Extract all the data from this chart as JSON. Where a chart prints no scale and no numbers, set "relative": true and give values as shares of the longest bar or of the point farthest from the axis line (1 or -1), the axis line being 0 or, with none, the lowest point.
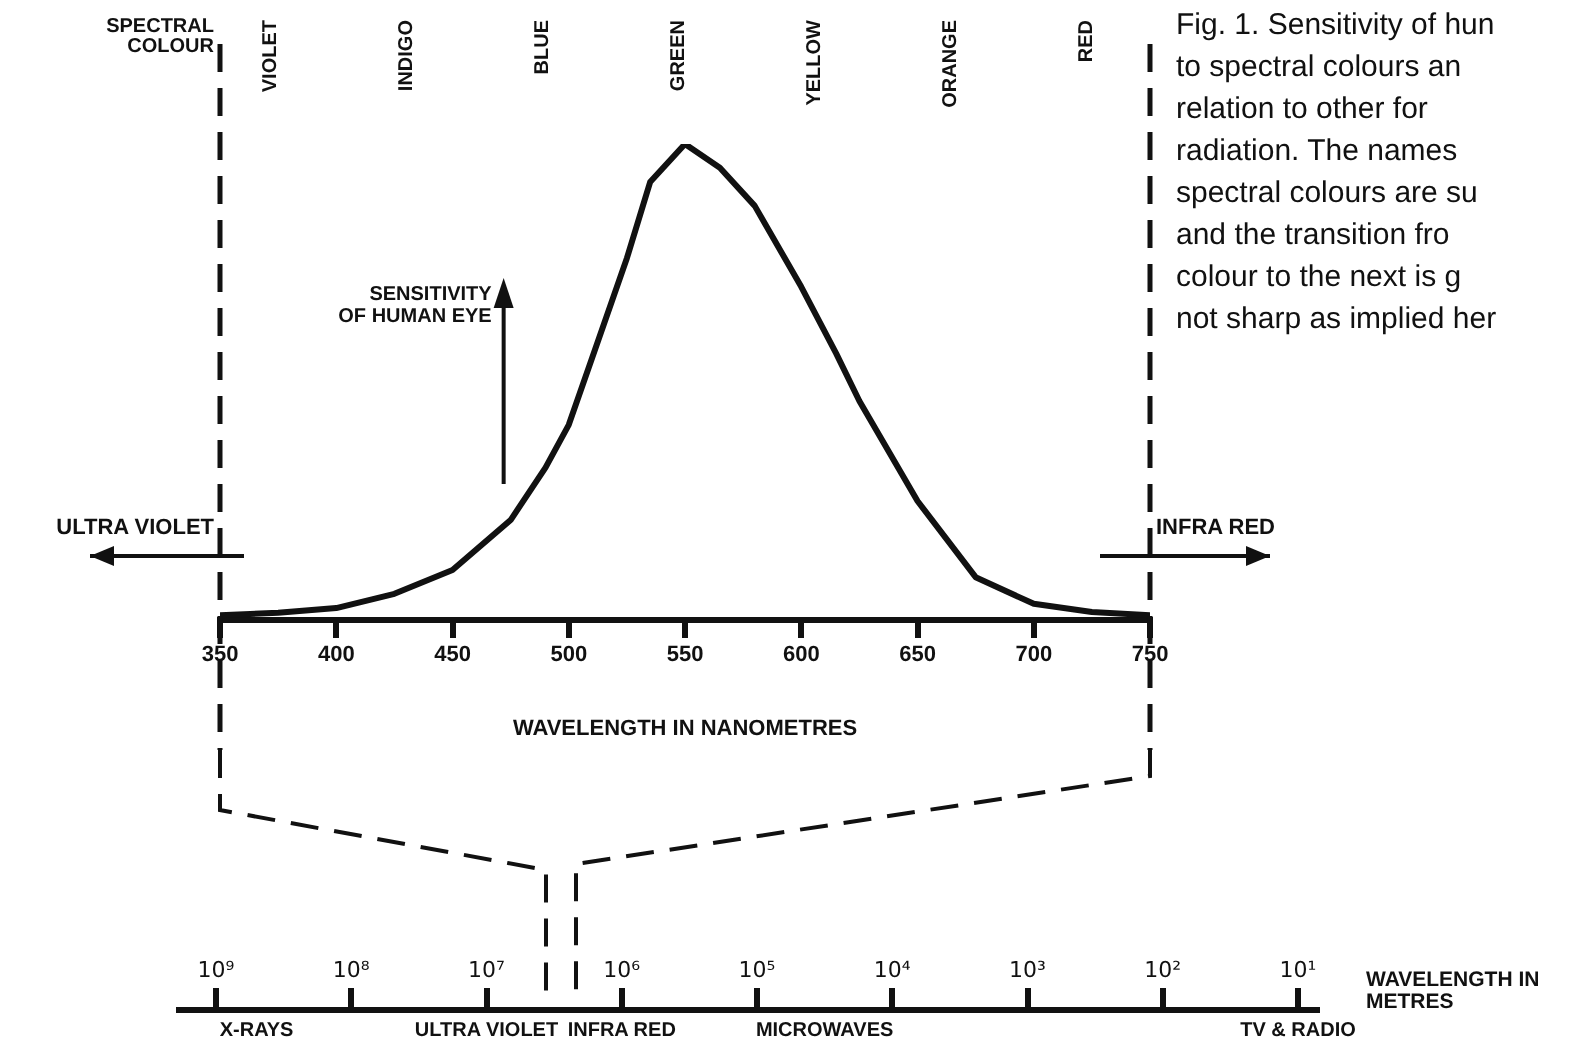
{
  "chart_data": [
    {
      "type": "line",
      "relative": true,
      "xlabel": "WAVELENGTH IN NANOMETRES",
      "ylabel": "SENSITIVITY OF HUMAN EYE",
      "x2label": "SPECTRAL COLOUR",
      "x": [
        350,
        375,
        400,
        425,
        450,
        475,
        490,
        500,
        510,
        525,
        535,
        550,
        565,
        580,
        600,
        615,
        625,
        650,
        675,
        700,
        725,
        750
      ],
      "values": [
        0.01,
        0.015,
        0.025,
        0.055,
        0.105,
        0.21,
        0.32,
        0.41,
        0.55,
        0.76,
        0.92,
        1,
        0.95,
        0.87,
        0.7,
        0.56,
        0.46,
        0.25,
        0.09,
        0.034,
        0.017,
        0.01
      ],
      "color": "#111111",
      "marker": "none",
      "grid": false,
      "legend": false,
      "xlim": [
        350,
        750
      ],
      "xticks": [
        350,
        400,
        450,
        500,
        550,
        600,
        650,
        700,
        750
      ],
      "ref_lines": [
        {
          "axis": "x",
          "value": 350,
          "label": "ULTRA VIOLET",
          "line_style": "dashed"
        },
        {
          "axis": "x",
          "value": 750,
          "label": "INFRA RED",
          "line_style": "dashed"
        }
      ],
      "annotations": [
        "VIOLET",
        "INDIGO",
        "BLUE",
        "GREEN",
        "YELLOW",
        "ORANGE",
        "RED",
        "Fig. 1. Sensitivity of hun\nto spectral colours an\nrelation to other for\nradiation. The names\nspectral colours are su\nand the transition fro\ncolour to the next is g\nnot sharp as implied her"
      ]
    },
    {
      "type": "other",
      "xlabel": "WAVELENGTH IN METRES",
      "categories": [
        "10⁹",
        "10⁸",
        "10⁷",
        "10⁶",
        "10⁵",
        "10⁴",
        "10³",
        "10²",
        "10¹"
      ],
      "annotations": [
        "X-RAYS",
        "ULTRA VIOLET",
        "INFRA RED",
        "MICROWAVES",
        "TV & RADIO"
      ]
    }
  ]
}
